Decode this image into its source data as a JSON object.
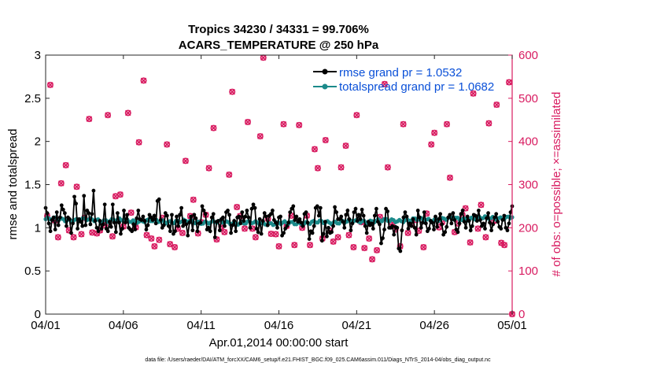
{
  "colors": {
    "rmse": "#000000",
    "spread": "#1b8a8a",
    "obs": "#d81b60",
    "legend_text": "#0a50d8",
    "axis": "#262626"
  },
  "chart_data": {
    "type": "line",
    "title": "Tropics 34230 / 34331 = 99.706%",
    "subtitle": "ACARS_TEMPERATURE @ 250 hPa",
    "xlabel": "Apr.01,2014 00:00:00 start",
    "ylabel_left": "rmse and totalspread",
    "ylabel_right": "# of obs: o=possible; ×=assimilated",
    "x_tick_labels": [
      "04/01",
      "04/06",
      "04/11",
      "04/16",
      "04/21",
      "04/26",
      "05/01"
    ],
    "x_tick_days": [
      0,
      5,
      10,
      15,
      20,
      25,
      30
    ],
    "y_left_ticks": [
      "0",
      "0.5",
      "1",
      "1.5",
      "2",
      "2.5",
      "3"
    ],
    "y_left_range": [
      0,
      3
    ],
    "y_right_ticks": [
      "0",
      "100",
      "200",
      "300",
      "400",
      "500",
      "600"
    ],
    "y_right_range": [
      0,
      600
    ],
    "legend_position": "top-right",
    "footer": "data file: /Users/raeder/DAI/ATM_forcXX/CAM6_setup/f.e21.FHIST_BGC.f09_025.CAM6assim.011/Diags_NTrS_2014-04/obs_diag_output.nc",
    "series": [
      {
        "name": "rmse grand pr = 1.0532",
        "axis": "left",
        "values": [
          1.23,
          1.17,
          1.05,
          0.96,
          1.09,
          1.12,
          0.98,
          1.18,
          1.03,
          1.12,
          1.26,
          1.21,
          1.17,
          1.02,
          1.12,
          1.1,
          0.94,
          1.05,
          1.36,
          1.28,
          0.99,
          1.1,
          1.07,
          1.02,
          1.37,
          1.03,
          1.2,
          1.17,
          1.04,
          1.16,
          1.43,
          1.08,
          1.0,
          0.96,
          1.08,
          0.99,
          1.04,
          1.27,
          0.99,
          0.96,
          1.07,
          1.01,
          1.27,
          1.06,
          0.95,
          1.17,
          1.06,
          0.93,
          0.99,
          1.2,
          1.06,
          1.15,
          1.0,
          0.98,
          0.96,
          1.04,
          0.98,
          1.11,
          1.2,
          1.1,
          1.09,
          1.13,
          1.08,
          0.98,
          1.03,
          1.15,
          1.12,
          1.09,
          1.14,
          1.05,
          1.31,
          1.33,
          1.09,
          1.0,
          1.03,
          1.17,
          1.14,
          1.02,
          0.96,
          1.15,
          0.93,
          0.96,
          1.13,
          1.02,
          1.15,
          1.23,
          1.02,
          1.08,
          1.04,
          0.91,
          1.06,
          1.13,
          0.97,
          1.15,
          1.11,
          0.96,
          1.05,
          1.06,
          1.25,
          1.2,
          1.16,
          0.98,
          1.0,
          0.96,
          1.12,
          1.16,
          0.89,
          1.07,
          1.08,
          0.97,
          1.1,
          1.12,
          1.02,
          1.18,
          1.2,
          1.15,
          0.94,
          1.03,
          1.08,
          0.96,
          1.12,
          1.13,
          1.05,
          1.18,
          1.08,
          1.13,
          1.2,
          1.12,
          1.0,
          1.22,
          1.27,
          1.23,
          0.99,
          0.95,
          1.1,
          0.93,
          1.08,
          1.17,
          1.13,
          1.03,
          1.14,
          1.16,
          1.2,
          1.09,
          1.06,
          1.0,
          1.12,
          1.13,
          0.91,
          0.94,
          0.99,
          1.02,
          1.06,
          1.18,
          1.22,
          1.25,
          1.09,
          1.13,
          1.07,
          1.1,
          1.06,
          1.02,
          1.16,
          1.18,
          1.06,
          0.87,
          0.96,
          0.94,
          1.02,
          1.23,
          1.25,
          1.14,
          1.23,
          0.85,
          0.93,
          1.07,
          0.9,
          1.0,
          0.94,
          0.95,
          1.02,
          1.24,
          1.18,
          1.1,
          1.1,
          1.13,
          1.07,
          1.0,
          1.15,
          1.2,
          1.1,
          0.97,
          1.05,
          1.18,
          1.22,
          1.08,
          1.15,
          1.1,
          1.21,
          1.14,
          1.02,
          0.94,
          1.07,
          1.03,
          1.05,
          0.99,
          1.14,
          1.22,
          1.07,
          1.04,
          0.82,
          0.88,
          0.98,
          1.22,
          1.19,
          1.0,
          1.0,
          1.02,
          0.92,
          1.01,
          1.0,
          0.76,
          0.73,
          0.97,
          1.12,
          1.18,
          1.13,
          0.99,
          1.05,
          1.02,
          1.1,
          1.0,
          0.92,
          1.2,
          1.12,
          1.0,
          1.06,
          1.18,
          1.05,
          0.96,
          0.99,
          1.08,
          1.06,
          0.98,
          1.13,
          1.01,
          1.1,
          1.16,
          1.04,
          0.92,
          0.95,
          1.01,
          1.12,
          1.15,
          1.05,
          1.17,
          1.09,
          0.98,
          0.95,
          1.05,
          1.16,
          1.2,
          1.07,
          1.0,
          1.13,
          1.08,
          0.97,
          1.02,
          1.15,
          1.14,
          1.08,
          1.2,
          1.09,
          1.02,
          1.05,
          0.99,
          1.11,
          1.17,
          1.06,
          0.97,
          1.04,
          1.12,
          1.16,
          1.07,
          1.01,
          0.99,
          1.09,
          1.14,
          1.0,
          0.97,
          1.05,
          1.18,
          1.25
        ]
      },
      {
        "name": "totalspread grand pr = 1.0682",
        "axis": "left",
        "values_start": 1.1,
        "values_mid": 1.05,
        "values_end": 1.12
      },
      {
        "name": "obs possible",
        "axis": "right",
        "points": [
          [
            0.1,
            227
          ],
          [
            0.3,
            531
          ],
          [
            0.6,
            217
          ],
          [
            0.8,
            178
          ],
          [
            1.0,
            303
          ],
          [
            1.3,
            345
          ],
          [
            1.5,
            194
          ],
          [
            1.8,
            178
          ],
          [
            2.0,
            295
          ],
          [
            2.3,
            185
          ],
          [
            2.5,
            223
          ],
          [
            2.8,
            452
          ],
          [
            3.0,
            189
          ],
          [
            3.3,
            187
          ],
          [
            3.5,
            194
          ],
          [
            3.8,
            206
          ],
          [
            4.0,
            461
          ],
          [
            4.3,
            180
          ],
          [
            4.5,
            273
          ],
          [
            4.8,
            277
          ],
          [
            5.0,
            203
          ],
          [
            5.3,
            466
          ],
          [
            5.5,
            235
          ],
          [
            5.8,
            201
          ],
          [
            6.0,
            398
          ],
          [
            6.3,
            541
          ],
          [
            6.5,
            183
          ],
          [
            6.8,
            175
          ],
          [
            7.0,
            157
          ],
          [
            7.3,
            172
          ],
          [
            7.5,
            223
          ],
          [
            7.8,
            393
          ],
          [
            8.0,
            162
          ],
          [
            8.3,
            155
          ],
          [
            8.5,
            198
          ],
          [
            8.8,
            188
          ],
          [
            9.0,
            355
          ],
          [
            9.3,
            227
          ],
          [
            9.5,
            265
          ],
          [
            9.8,
            187
          ],
          [
            10.0,
            213
          ],
          [
            10.3,
            230
          ],
          [
            10.5,
            338
          ],
          [
            10.8,
            431
          ],
          [
            11.0,
            173
          ],
          [
            11.3,
            203
          ],
          [
            11.5,
            190
          ],
          [
            11.8,
            323
          ],
          [
            12.0,
            515
          ],
          [
            12.3,
            248
          ],
          [
            12.5,
            227
          ],
          [
            12.8,
            198
          ],
          [
            13.0,
            445
          ],
          [
            13.3,
            198
          ],
          [
            13.5,
            178
          ],
          [
            13.8,
            412
          ],
          [
            14.0,
            594
          ],
          [
            14.3,
            221
          ],
          [
            14.5,
            186
          ],
          [
            14.8,
            185
          ],
          [
            15.0,
            157
          ],
          [
            15.3,
            440
          ],
          [
            15.5,
            204
          ],
          [
            15.8,
            228
          ],
          [
            16.0,
            160
          ],
          [
            16.3,
            438
          ],
          [
            16.5,
            200
          ],
          [
            16.8,
            228
          ],
          [
            17.0,
            160
          ],
          [
            17.3,
            382
          ],
          [
            17.5,
            338
          ],
          [
            17.8,
            175
          ],
          [
            18.0,
            403
          ],
          [
            18.3,
            193
          ],
          [
            18.5,
            168
          ],
          [
            18.8,
            178
          ],
          [
            19.0,
            340
          ],
          [
            19.3,
            390
          ],
          [
            19.5,
            183
          ],
          [
            19.8,
            155
          ],
          [
            20.0,
            461
          ],
          [
            20.3,
            213
          ],
          [
            20.5,
            153
          ],
          [
            20.8,
            175
          ],
          [
            21.0,
            127
          ],
          [
            21.3,
            148
          ],
          [
            21.5,
            225
          ],
          [
            21.8,
            533
          ],
          [
            22.0,
            340
          ],
          [
            22.3,
            211
          ],
          [
            22.5,
            196
          ],
          [
            22.8,
            157
          ],
          [
            23.0,
            440
          ],
          [
            23.3,
            188
          ],
          [
            23.5,
            208
          ],
          [
            23.8,
            218
          ],
          [
            24.0,
            193
          ],
          [
            24.3,
            155
          ],
          [
            24.5,
            233
          ],
          [
            24.8,
            393
          ],
          [
            25.0,
            420
          ],
          [
            25.3,
            201
          ],
          [
            25.5,
            213
          ],
          [
            25.8,
            440
          ],
          [
            26.0,
            316
          ],
          [
            26.3,
            190
          ],
          [
            26.5,
            210
          ],
          [
            26.8,
            230
          ],
          [
            27.0,
            245
          ],
          [
            27.3,
            166
          ],
          [
            27.5,
            511
          ],
          [
            27.8,
            198
          ],
          [
            28.0,
            253
          ],
          [
            28.3,
            178
          ],
          [
            28.5,
            442
          ],
          [
            28.8,
            215
          ],
          [
            29.0,
            485
          ],
          [
            29.3,
            165
          ],
          [
            29.5,
            160
          ],
          [
            29.8,
            537
          ],
          [
            30.0,
            0
          ]
        ]
      }
    ]
  }
}
